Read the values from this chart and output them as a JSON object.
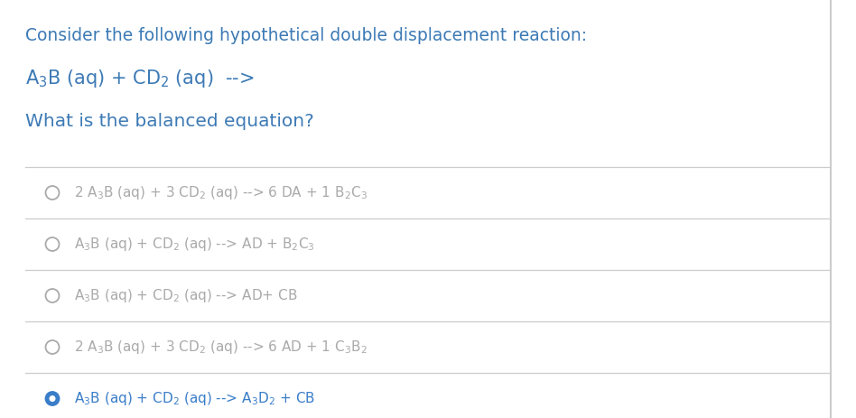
{
  "bg_color": "#ffffff",
  "border_color": "#cccccc",
  "header_text_color": "#3d7ab5",
  "dark_text_color": "#444444",
  "option_color": "#aaaaaa",
  "selected_color": "#3a7dc9",
  "header_line1": "Consider the following hypothetical double displacement reaction:",
  "header_line3": "What is the balanced equation?",
  "fig_width": 9.48,
  "fig_height": 4.63,
  "dpi": 100
}
